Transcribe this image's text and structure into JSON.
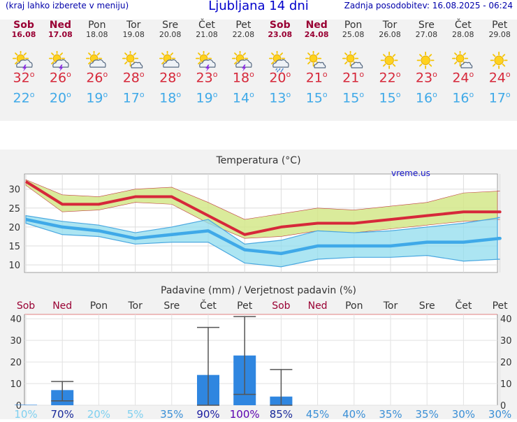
{
  "header": {
    "menu_hint": "(kraj lahko izberete v meniju)",
    "title": "Ljubljana 14 dni",
    "updated": "Zadnja posodobitev: 16.08.2025 - 06:24"
  },
  "days": [
    {
      "name": "Sob",
      "date": "16.08",
      "weekend": true,
      "icon": "sun-cloud-thunder-icon",
      "hi": "32",
      "lo": "22"
    },
    {
      "name": "Ned",
      "date": "17.08",
      "weekend": true,
      "icon": "sun-cloud-thunder-icon",
      "hi": "26",
      "lo": "20"
    },
    {
      "name": "Pon",
      "date": "18.08",
      "weekend": false,
      "icon": "sun-cloud-icon",
      "hi": "26",
      "lo": "19"
    },
    {
      "name": "Tor",
      "date": "19.08",
      "weekend": false,
      "icon": "sun-small-cloud-icon",
      "hi": "28",
      "lo": "17"
    },
    {
      "name": "Sre",
      "date": "20.08",
      "weekend": false,
      "icon": "sun-cloud-icon",
      "hi": "28",
      "lo": "18"
    },
    {
      "name": "Čet",
      "date": "21.08",
      "weekend": false,
      "icon": "sun-cloud-thunder-icon",
      "hi": "23",
      "lo": "19"
    },
    {
      "name": "Pet",
      "date": "22.08",
      "weekend": false,
      "icon": "sun-cloud-thunder-icon",
      "hi": "18",
      "lo": "14"
    },
    {
      "name": "Sob",
      "date": "23.08",
      "weekend": true,
      "icon": "sun-cloud-rain-icon",
      "hi": "20",
      "lo": "13"
    },
    {
      "name": "Ned",
      "date": "24.08",
      "weekend": true,
      "icon": "sun-small-cloud-icon",
      "hi": "21",
      "lo": "15"
    },
    {
      "name": "Pon",
      "date": "25.08",
      "weekend": false,
      "icon": "sun-small-cloud-icon",
      "hi": "21",
      "lo": "15"
    },
    {
      "name": "Tor",
      "date": "26.08",
      "weekend": false,
      "icon": "sun-icon",
      "hi": "22",
      "lo": "15"
    },
    {
      "name": "Sre",
      "date": "27.08",
      "weekend": false,
      "icon": "sun-icon",
      "hi": "23",
      "lo": "16"
    },
    {
      "name": "Čet",
      "date": "28.08",
      "weekend": false,
      "icon": "sun-small-cloud-icon",
      "hi": "24",
      "lo": "16"
    },
    {
      "name": "Pet",
      "date": "29.08",
      "weekend": false,
      "icon": "sun-icon",
      "hi": "24",
      "lo": "17"
    }
  ],
  "colors": {
    "weekend": "#990033",
    "weekday": "#333333",
    "high_temp": "#d6283a",
    "low_temp": "#3fa9e8",
    "high_band": "#d4e88a",
    "low_band": "#90dcee",
    "precip_bar": "#2f86e0"
  },
  "chart_data": [
    {
      "type": "line",
      "title": "Temperatura (°C)",
      "watermark": "vreme.us",
      "categories": [
        "16.08",
        "17.08",
        "18.08",
        "19.08",
        "20.08",
        "21.08",
        "22.08",
        "23.08",
        "24.08",
        "25.08",
        "26.08",
        "27.08",
        "28.08",
        "29.08"
      ],
      "ylim": [
        8,
        34
      ],
      "yticks": [
        10,
        15,
        20,
        25,
        30
      ],
      "grid": true,
      "series": [
        {
          "values": [
            32,
            26,
            26,
            28,
            28,
            23,
            18,
            20,
            21,
            21,
            22,
            23,
            24,
            24
          ],
          "band_low": [
            31,
            24,
            24.5,
            26.5,
            26,
            21,
            17,
            17.5,
            19,
            18.5,
            19.5,
            20.5,
            21.5,
            22
          ],
          "band_high": [
            32.5,
            28.5,
            28,
            30,
            30.5,
            26.5,
            22,
            23.5,
            25,
            24.5,
            25.5,
            26.5,
            29,
            29.5
          ]
        },
        {
          "values": [
            22,
            20,
            19,
            17,
            18,
            19,
            14,
            13,
            15,
            15,
            15,
            16,
            16,
            17
          ],
          "band_low": [
            21,
            18,
            17.5,
            15.5,
            16,
            16,
            10.5,
            9.5,
            11.5,
            12,
            12,
            12.5,
            11,
            11.5
          ],
          "band_high": [
            23,
            21.5,
            20.5,
            18.5,
            20,
            22,
            15.5,
            16.5,
            19,
            18.5,
            19,
            20,
            21,
            22.5
          ]
        }
      ]
    },
    {
      "type": "bar",
      "title": "Padavine (mm) / Verjetnost padavin (%)",
      "ylim": [
        0,
        42
      ],
      "yticks": [
        0,
        10,
        20,
        30,
        40
      ],
      "grid": true,
      "categories": [
        "Sob",
        "Ned",
        "Pon",
        "Tor",
        "Sre",
        "Čet",
        "Pet",
        "Sob",
        "Ned",
        "Pon",
        "Tor",
        "Sre",
        "Čet",
        "Pet"
      ],
      "weekend": [
        true,
        true,
        false,
        false,
        false,
        false,
        false,
        true,
        true,
        false,
        false,
        false,
        false,
        false
      ],
      "values": [
        0.2,
        7,
        0,
        0,
        0,
        14,
        23,
        4,
        0,
        0,
        0,
        0,
        0,
        0
      ],
      "err_low": [
        null,
        2,
        null,
        null,
        null,
        0,
        5,
        0,
        null,
        null,
        null,
        null,
        null,
        null
      ],
      "err_high": [
        null,
        11,
        null,
        null,
        null,
        36,
        41,
        16.5,
        null,
        null,
        null,
        null,
        null,
        null
      ],
      "probability": [
        "10%",
        "70%",
        "20%",
        "5%",
        "35%",
        "90%",
        "100%",
        "85%",
        "45%",
        "40%",
        "35%",
        "35%",
        "30%",
        "30%"
      ],
      "probability_colors": [
        "#7fd0f0",
        "#1a2a9a",
        "#7fd0f0",
        "#7fd0f0",
        "#3a8fd6",
        "#1a1aa0",
        "#5a00b0",
        "#1a2a9a",
        "#3a8fd6",
        "#3a8fd6",
        "#3a8fd6",
        "#3a8fd6",
        "#3a8fd6",
        "#3a8fd6"
      ]
    }
  ]
}
